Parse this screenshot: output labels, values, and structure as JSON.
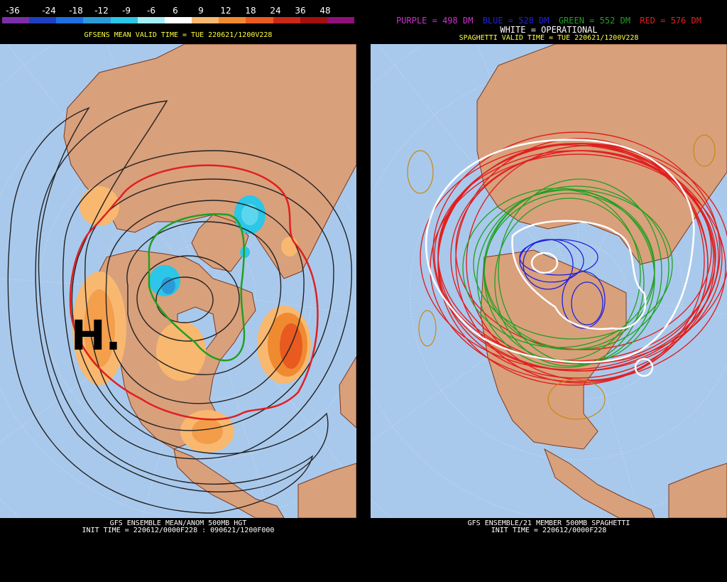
{
  "left_panel": {
    "colorbar_labels": [
      "-36",
      "-24",
      "-18",
      "-12",
      "-9",
      "-6",
      "6",
      "9",
      "12",
      "18",
      "24",
      "36",
      "48"
    ],
    "colorbar_colors": [
      "#7a2ea8",
      "#2040c0",
      "#1e6ee0",
      "#2a9bd8",
      "#2cc6e8",
      "#a6eef6",
      "#ffffff",
      "#f8b870",
      "#f08a30",
      "#e85a20",
      "#c82818",
      "#a01010",
      "#90107a"
    ],
    "valid_time": "GFSENS MEAN VALID TIME = TUE 220621/1200V228",
    "footer_line1": "GFS ENSEMBLE MEAN/ANOM 500MB HGT",
    "footer_line2": "INIT TIME = 220612/0000F228 : 090621/1200F000",
    "high_marker": "H."
  },
  "right_panel": {
    "legend_parts": [
      {
        "text": "PURPLE = 498 DM",
        "color": "#d030d0"
      },
      {
        "text": "BLUE = 528 DM",
        "color": "#2020e0"
      },
      {
        "text": "GREEN = 552 DM",
        "color": "#20a020"
      },
      {
        "text": "RED = 576 DM",
        "color": "#e02020"
      }
    ],
    "operational_note": "WHITE = OPERATIONAL",
    "valid_time": "SPAGHETTI VALID TIME = TUE 220621/1200V228",
    "footer_line1": "GFS ENSEMBLE/21 MEMBER 500MB SPAGHETTI",
    "footer_line2": "INIT TIME = 220612/0000F228"
  },
  "colors": {
    "ocean": "#a9c9ec",
    "land": "#d9a07c",
    "border": "#7a3a1e",
    "valid_time_text": "#ffff40"
  }
}
